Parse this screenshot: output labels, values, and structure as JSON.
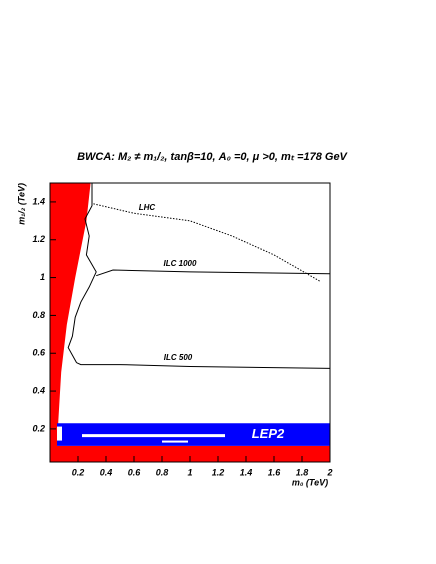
{
  "chart_data": {
    "type": "line",
    "title": "BWCA: M₂ ≠ m₁/₂, tanβ=10, A₀ =0, μ >0, mₜ =178 GeV",
    "x_label": "m₀ (TeV)",
    "y_label": "m₁/₂ (TeV)",
    "xlim": [
      0,
      2
    ],
    "ylim": [
      0.025,
      1.5
    ],
    "xticks": [
      0.2,
      0.4,
      0.6,
      0.8,
      1,
      1.2,
      1.4,
      1.6,
      1.8,
      2
    ],
    "yticks": [
      0.2,
      0.4,
      0.6,
      0.8,
      1,
      1.2,
      1.4
    ],
    "regions": [
      {
        "color": "#ff0000",
        "x": [
          0,
          0.29,
          0.26,
          0.18,
          0.12,
          0.08,
          0.06,
          0.05,
          2,
          2,
          0
        ],
        "y": [
          1.5,
          1.5,
          1.3,
          1.0,
          0.75,
          0.5,
          0.25,
          0.11,
          0.11,
          0.025,
          0.025
        ]
      },
      {
        "color": "#0000ff",
        "label": "LEP2",
        "x": [
          0.05,
          2,
          2,
          0.05
        ],
        "y": [
          0.11,
          0.11,
          0.23,
          0.23
        ]
      }
    ],
    "series": [
      {
        "name": "LHC",
        "color": "#000000",
        "dashed": true,
        "x": [
          0.31,
          0.6,
          1.0,
          1.3,
          1.6,
          1.93
        ],
        "y": [
          1.39,
          1.34,
          1.3,
          1.22,
          1.12,
          0.98
        ]
      },
      {
        "name": "ILC 1000",
        "color": "#000000",
        "x": [
          0.33,
          0.45,
          1.0,
          2.0
        ],
        "y": [
          1.01,
          1.04,
          1.03,
          1.02
        ]
      },
      {
        "name": "ILC 500",
        "color": "#000000",
        "x": [
          0.19,
          0.22,
          0.5,
          1.0,
          2.0
        ],
        "y": [
          0.55,
          0.54,
          0.54,
          0.53,
          0.52
        ]
      },
      {
        "color": "#000000",
        "x": [
          0.3,
          0.3,
          0.25,
          0.28,
          0.26,
          0.33,
          0.28,
          0.22,
          0.18,
          0.16,
          0.13,
          0.19
        ],
        "y": [
          1.5,
          1.38,
          1.31,
          1.22,
          1.12,
          1.03,
          0.95,
          0.87,
          0.79,
          0.69,
          0.63,
          0.55
        ]
      }
    ]
  }
}
